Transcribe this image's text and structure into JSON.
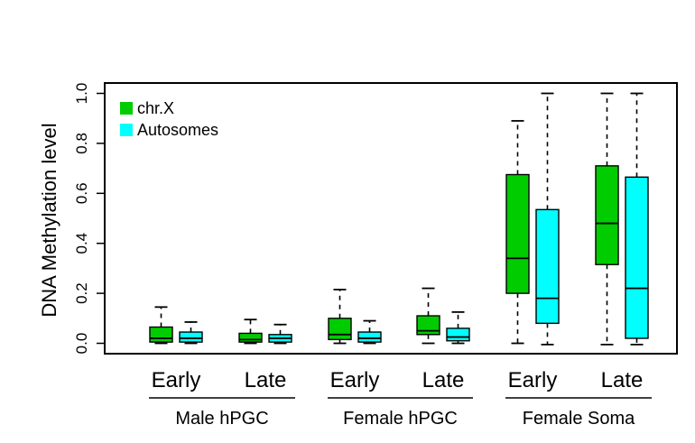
{
  "chart_data": {
    "type": "boxplot",
    "ylabel": "DNA Methylation level",
    "xlabel": "",
    "title": "",
    "ylim": [
      0,
      1.0
    ],
    "y_ticks": [
      "0.0",
      "0.2",
      "0.4",
      "0.6",
      "0.8",
      "1.0"
    ],
    "y_tick_values": [
      0,
      0.2,
      0.4,
      0.6,
      0.8,
      1.0
    ],
    "grid": false,
    "legend_position": "top-left",
    "series": [
      {
        "name": "chr.X",
        "color": "#00cc00"
      },
      {
        "name": "Autosomes",
        "color": "#00ffff"
      }
    ],
    "groups": [
      {
        "label": "Male hPGC",
        "stages": [
          {
            "label": "Early",
            "boxes": [
              {
                "series": "chr.X",
                "whisker_low": 0.0,
                "q1": 0.005,
                "median": 0.02,
                "q3": 0.065,
                "whisker_high": 0.145
              },
              {
                "series": "Autosomes",
                "whisker_low": 0.0,
                "q1": 0.005,
                "median": 0.02,
                "q3": 0.045,
                "whisker_high": 0.085
              }
            ]
          },
          {
            "label": "Late",
            "boxes": [
              {
                "series": "chr.X",
                "whisker_low": 0.0,
                "q1": 0.005,
                "median": 0.015,
                "q3": 0.04,
                "whisker_high": 0.095
              },
              {
                "series": "Autosomes",
                "whisker_low": 0.0,
                "q1": 0.005,
                "median": 0.02,
                "q3": 0.035,
                "whisker_high": 0.075
              }
            ]
          }
        ]
      },
      {
        "label": "Female hPGC",
        "stages": [
          {
            "label": "Early",
            "boxes": [
              {
                "series": "chr.X",
                "whisker_low": 0.0,
                "q1": 0.015,
                "median": 0.035,
                "q3": 0.1,
                "whisker_high": 0.215
              },
              {
                "series": "Autosomes",
                "whisker_low": 0.0,
                "q1": 0.005,
                "median": 0.02,
                "q3": 0.045,
                "whisker_high": 0.09
              }
            ]
          },
          {
            "label": "Late",
            "boxes": [
              {
                "series": "chr.X",
                "whisker_low": 0.0,
                "q1": 0.035,
                "median": 0.05,
                "q3": 0.11,
                "whisker_high": 0.22
              },
              {
                "series": "Autosomes",
                "whisker_low": 0.0,
                "q1": 0.01,
                "median": 0.025,
                "q3": 0.06,
                "whisker_high": 0.125
              }
            ]
          }
        ]
      },
      {
        "label": "Female Soma",
        "stages": [
          {
            "label": "Early",
            "boxes": [
              {
                "series": "chr.X",
                "whisker_low": 0.0,
                "q1": 0.2,
                "median": 0.34,
                "q3": 0.675,
                "whisker_high": 0.89
              },
              {
                "series": "Autosomes",
                "whisker_low": -0.005,
                "q1": 0.08,
                "median": 0.18,
                "q3": 0.535,
                "whisker_high": 1.0
              }
            ]
          },
          {
            "label": "Late",
            "boxes": [
              {
                "series": "chr.X",
                "whisker_low": -0.005,
                "q1": 0.315,
                "median": 0.48,
                "q3": 0.71,
                "whisker_high": 1.0
              },
              {
                "series": "Autosomes",
                "whisker_low": -0.005,
                "q1": 0.02,
                "median": 0.22,
                "q3": 0.665,
                "whisker_high": 1.0
              }
            ]
          }
        ]
      }
    ]
  }
}
